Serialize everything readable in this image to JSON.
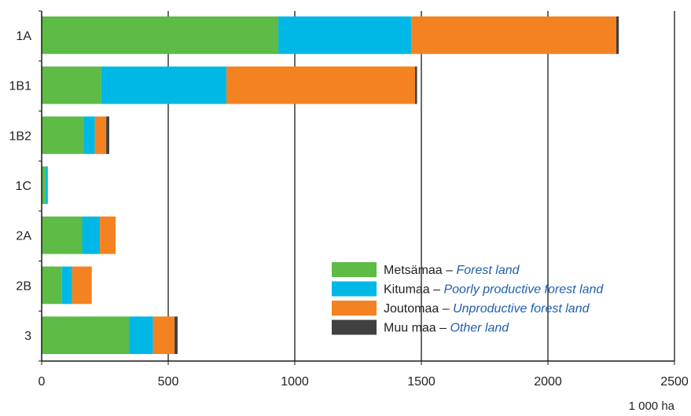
{
  "chart_data": {
    "type": "bar",
    "orientation": "horizontal",
    "stacked": true,
    "categories": [
      "1A",
      "1B1",
      "1B2",
      "1C",
      "2A",
      "2B",
      "3"
    ],
    "series": [
      {
        "name": "Metsämaa",
        "name_en": "Forest land",
        "color": "#5dbb46",
        "values": [
          935,
          235,
          165,
          15,
          160,
          80,
          345
        ]
      },
      {
        "name": "Kitumaa",
        "name_en": "Poorly productive forest land",
        "color": "#00b8e6",
        "values": [
          525,
          495,
          45,
          8,
          70,
          40,
          95
        ]
      },
      {
        "name": "Joutomaa",
        "name_en": "Unproductive forest land",
        "color": "#f58220",
        "values": [
          810,
          745,
          45,
          2,
          62,
          78,
          85
        ]
      },
      {
        "name": "Muu maa",
        "name_en": "Other land",
        "color": "#404040",
        "values": [
          10,
          8,
          12,
          0,
          0,
          0,
          12
        ]
      }
    ],
    "x_ticks": [
      "0",
      "500",
      "1000",
      "1500",
      "2000",
      "2500"
    ],
    "xlim": [
      0,
      2500
    ],
    "xlabel": "1 000 ha",
    "grid": true,
    "legend_placement": "bottom-right",
    "legend_separator": "–"
  }
}
